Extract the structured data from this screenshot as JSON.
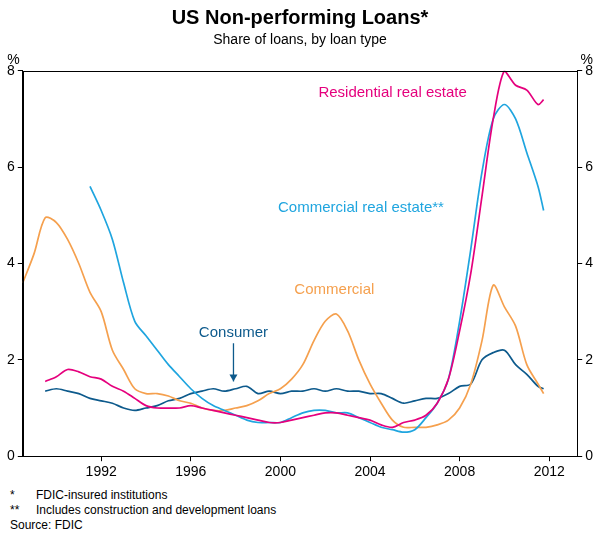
{
  "chart_data": {
    "type": "line",
    "title": "US Non-performing Loans*",
    "subtitle": "Share of loans, by loan type",
    "ylabel": "%",
    "x": [
      1988.5,
      1989,
      1989.5,
      1990,
      1990.5,
      1991,
      1991.5,
      1992,
      1992.5,
      1993,
      1993.5,
      1994,
      1994.5,
      1995,
      1995.5,
      1996,
      1996.5,
      1997,
      1997.5,
      1998,
      1998.5,
      1999,
      1999.5,
      2000,
      2000.5,
      2001,
      2001.5,
      2002,
      2002.5,
      2003,
      2003.5,
      2004,
      2004.5,
      2005,
      2005.5,
      2006,
      2006.5,
      2007,
      2007.5,
      2008,
      2008.5,
      2009,
      2009.5,
      2010,
      2010.5,
      2011,
      2011.5,
      2011.75
    ],
    "series": [
      {
        "name": "Residential real estate",
        "color": "#e5007d",
        "values": [
          null,
          null,
          1.55,
          1.65,
          1.8,
          1.75,
          1.65,
          1.6,
          1.45,
          1.35,
          1.2,
          1.05,
          1.0,
          1.0,
          1.0,
          1.05,
          1.0,
          0.95,
          0.9,
          0.85,
          0.8,
          0.75,
          0.7,
          0.7,
          0.75,
          0.8,
          0.85,
          0.9,
          0.9,
          0.85,
          0.8,
          0.75,
          0.65,
          0.6,
          0.7,
          0.75,
          0.85,
          1.1,
          1.6,
          2.6,
          3.8,
          5.4,
          7.0,
          8.0,
          7.7,
          7.6,
          7.3,
          7.4
        ]
      },
      {
        "name": "Commercial real estate**",
        "color": "#1fa5df",
        "values": [
          null,
          null,
          null,
          null,
          null,
          null,
          5.6,
          5.1,
          4.5,
          3.6,
          2.8,
          2.5,
          2.2,
          1.9,
          1.65,
          1.4,
          1.2,
          1.05,
          0.95,
          0.85,
          0.75,
          0.7,
          0.7,
          0.7,
          0.8,
          0.9,
          0.95,
          0.95,
          0.9,
          0.9,
          0.8,
          0.7,
          0.6,
          0.55,
          0.5,
          0.55,
          0.8,
          1.1,
          1.6,
          2.8,
          4.3,
          5.9,
          7.0,
          7.3,
          7.0,
          6.3,
          5.6,
          5.1
        ]
      },
      {
        "name": "Commercial",
        "color": "#f5a04e",
        "values": [
          3.6,
          4.2,
          4.95,
          4.85,
          4.5,
          4.0,
          3.4,
          3.0,
          2.2,
          1.8,
          1.4,
          1.3,
          1.3,
          1.25,
          1.15,
          1.1,
          1.0,
          0.95,
          0.95,
          1.0,
          1.05,
          1.15,
          1.3,
          1.4,
          1.6,
          1.9,
          2.4,
          2.8,
          2.95,
          2.6,
          2.0,
          1.5,
          1.1,
          0.75,
          0.6,
          0.6,
          0.6,
          0.65,
          0.75,
          1.0,
          1.5,
          2.4,
          3.55,
          3.1,
          2.7,
          1.9,
          1.5,
          1.3
        ]
      },
      {
        "name": "Consumer",
        "color": "#0d5a8c",
        "values": [
          null,
          null,
          1.35,
          1.4,
          1.35,
          1.3,
          1.2,
          1.15,
          1.1,
          1.0,
          0.95,
          1.0,
          1.05,
          1.15,
          1.2,
          1.3,
          1.35,
          1.4,
          1.35,
          1.4,
          1.45,
          1.3,
          1.35,
          1.3,
          1.35,
          1.35,
          1.4,
          1.35,
          1.4,
          1.35,
          1.35,
          1.3,
          1.3,
          1.2,
          1.1,
          1.15,
          1.2,
          1.2,
          1.3,
          1.45,
          1.5,
          2.0,
          2.15,
          2.2,
          1.9,
          1.7,
          1.45,
          1.4
        ]
      }
    ],
    "xlim": [
      1988.5,
      2013.25
    ],
    "xticks": [
      1992,
      1996,
      2000,
      2004,
      2008,
      2012
    ],
    "ylim": [
      0,
      8
    ],
    "yticks": [
      0,
      2,
      4,
      6,
      8
    ],
    "y2lim": [
      0,
      8
    ],
    "y2ticks": [
      0,
      2,
      4,
      6,
      8
    ],
    "grid": false,
    "footnotes": [
      {
        "mark": "*",
        "text": "FDIC-insured institutions"
      },
      {
        "mark": "**",
        "text": "Includes construction and development loans"
      }
    ],
    "source": "Source: FDIC"
  }
}
